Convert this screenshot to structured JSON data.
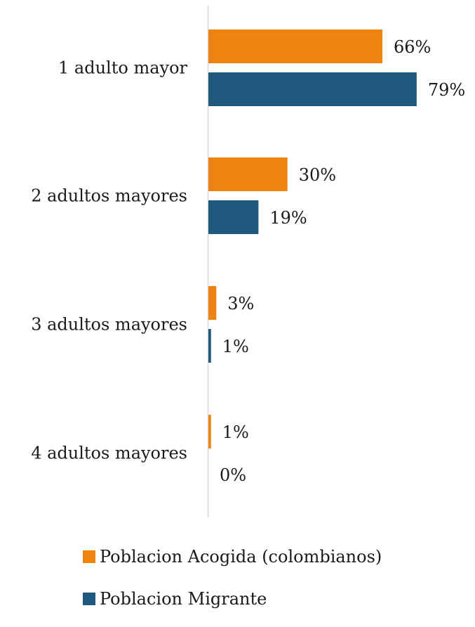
{
  "chart_data": {
    "type": "bar",
    "orientation": "horizontal",
    "categories": [
      "1 adulto mayor",
      "2 adultos mayores",
      "3 adultos mayores",
      "4 adultos mayores"
    ],
    "series": [
      {
        "name": "Poblacion Acogida (colombianos)",
        "values": [
          66,
          30,
          3,
          1
        ],
        "labels": [
          "66%",
          "30%",
          "3%",
          "1%"
        ],
        "color": "#F0820F"
      },
      {
        "name": "Poblacion Migrante",
        "values": [
          79,
          19,
          1,
          0
        ],
        "labels": [
          "79%",
          "19%",
          "1%",
          "0%"
        ],
        "color": "#1F5A7E"
      }
    ],
    "unit": "%",
    "xlim": [
      0,
      100
    ],
    "grid": false,
    "legend_position": "bottom"
  }
}
